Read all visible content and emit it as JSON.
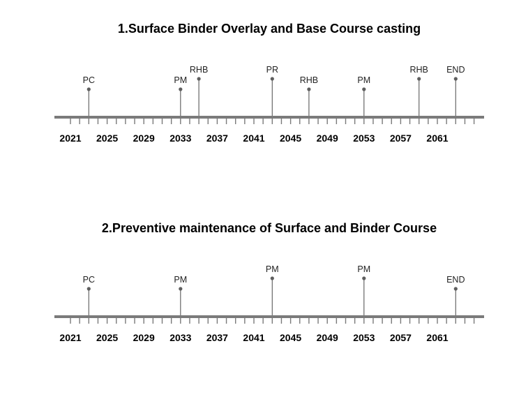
{
  "timelines": [
    {
      "title": "1.Surface Binder Overlay and Base Course casting",
      "events": [
        {
          "year": 2023,
          "label": "PC",
          "level": 1
        },
        {
          "year": 2033,
          "label": "PM",
          "level": 1
        },
        {
          "year": 2035,
          "label": "RHB",
          "level": 2
        },
        {
          "year": 2043,
          "label": "PR",
          "level": 2
        },
        {
          "year": 2047,
          "label": "RHB",
          "level": 1
        },
        {
          "year": 2053,
          "label": "PM",
          "level": 1
        },
        {
          "year": 2059,
          "label": "RHB",
          "level": 2
        },
        {
          "year": 2063,
          "label": "END",
          "level": 2
        }
      ]
    },
    {
      "title": "2.Preventive maintenance of Surface and Binder Course",
      "events": [
        {
          "year": 2023,
          "label": "PC",
          "level": 1
        },
        {
          "year": 2033,
          "label": "PM",
          "level": 1
        },
        {
          "year": 2043,
          "label": "PM",
          "level": 2
        },
        {
          "year": 2053,
          "label": "PM",
          "level": 2
        },
        {
          "year": 2063,
          "label": "END",
          "level": 1
        }
      ]
    }
  ],
  "axis": {
    "start_year": 2021,
    "end_year": 2065,
    "tick_labels": [
      "2021",
      "2025",
      "2029",
      "2033",
      "2037",
      "2041",
      "2045",
      "2049",
      "2053",
      "2057",
      "2061"
    ]
  },
  "colors": {
    "axis_line": "#7a7a7a",
    "stem": "#666666",
    "marker": "#5f5f5f",
    "text": "#000000"
  }
}
